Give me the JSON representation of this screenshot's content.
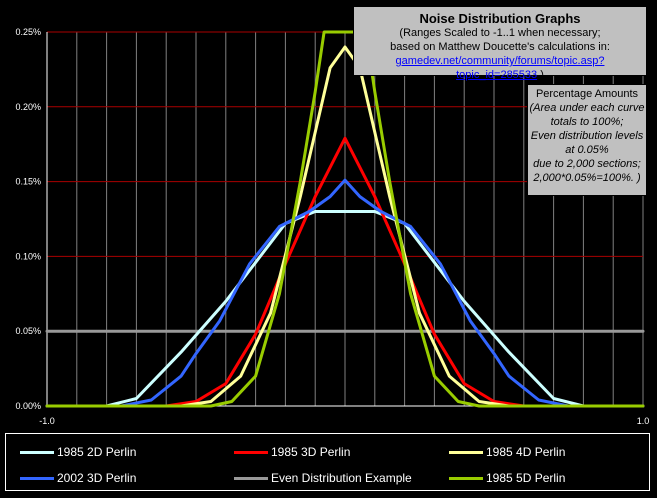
{
  "title_box": {
    "title": "Noise Distribution Graphs",
    "line1": "(Ranges Scaled to -1..1 when necessary;",
    "line2": "based on Matthew Doucette's calculations in:",
    "link": "gamedev.net/community/forums/topic.asp?topic_id=285533",
    "link_suffix": ".)"
  },
  "pct_box": {
    "title": "Percentage Amounts",
    "lines": [
      "(Area under each curve",
      "totals to 100%;",
      "Even distribution levels",
      "at 0.05%",
      "due to 2,000 sections;",
      "2,000*0.05%=100%. )"
    ]
  },
  "colors": {
    "background": "#000000",
    "gridline": "#aa0000",
    "vgrid": "#808080",
    "p2d_1985": "#ccffff",
    "p3d_1985": "#ff0000",
    "p4d_1985": "#ffff99",
    "p3d_2002": "#3366ff",
    "even": "#999999",
    "p5d_1985": "#99cc00"
  },
  "chart_data": {
    "type": "line",
    "title": "Noise Distribution Graphs",
    "xlim": [
      -1.0,
      1.0
    ],
    "ylim": [
      0.0,
      0.25
    ],
    "x_tick_labels": [
      "-1.0",
      "1.0"
    ],
    "y_ticks": [
      0.0,
      0.05,
      0.1,
      0.15,
      0.2,
      0.25
    ],
    "y_tick_labels": [
      "0.00%",
      "0.05%",
      "0.10%",
      "0.15%",
      "0.20%",
      "0.25%"
    ],
    "legend": "bottom",
    "grid": true,
    "series": [
      {
        "name": "1985 2D Perlin",
        "color": "#ccffff",
        "x": [
          -1.0,
          -0.8,
          -0.7,
          -0.55,
          -0.4,
          -0.2,
          -0.1,
          0.1,
          0.2,
          0.4,
          0.55,
          0.7,
          0.8,
          1.0
        ],
        "y": [
          0.0,
          0.0,
          0.005,
          0.036,
          0.07,
          0.122,
          0.13,
          0.13,
          0.122,
          0.07,
          0.036,
          0.005,
          0.0,
          0.0
        ]
      },
      {
        "name": "1985 3D Perlin",
        "color": "#ff0000",
        "x": [
          -1.0,
          -0.6,
          -0.5,
          -0.4,
          -0.3,
          -0.2,
          -0.1,
          0.0,
          0.1,
          0.2,
          0.3,
          0.4,
          0.5,
          0.6,
          1.0
        ],
        "y": [
          0.0,
          0.0,
          0.003,
          0.015,
          0.048,
          0.095,
          0.14,
          0.179,
          0.14,
          0.095,
          0.048,
          0.015,
          0.003,
          0.0,
          0.0
        ]
      },
      {
        "name": "1985 4D Perlin",
        "color": "#ffff99",
        "x": [
          -1.0,
          -0.55,
          -0.45,
          -0.35,
          -0.25,
          -0.15,
          -0.05,
          0.0,
          0.05,
          0.15,
          0.25,
          0.35,
          0.45,
          0.55,
          1.0
        ],
        "y": [
          0.0,
          0.0,
          0.003,
          0.02,
          0.062,
          0.14,
          0.226,
          0.24,
          0.226,
          0.14,
          0.062,
          0.02,
          0.003,
          0.0,
          0.0
        ]
      },
      {
        "name": "2002 3D Perlin",
        "color": "#3366ff",
        "x": [
          -1.0,
          -0.75,
          -0.65,
          -0.55,
          -0.5,
          -0.42,
          -0.32,
          -0.22,
          -0.12,
          -0.05,
          0.0,
          0.05,
          0.12,
          0.22,
          0.32,
          0.42,
          0.5,
          0.55,
          0.65,
          0.75,
          1.0
        ],
        "y": [
          0.0,
          0.0,
          0.004,
          0.02,
          0.035,
          0.057,
          0.095,
          0.12,
          0.13,
          0.14,
          0.151,
          0.14,
          0.13,
          0.12,
          0.095,
          0.057,
          0.035,
          0.02,
          0.004,
          0.0,
          0.0
        ]
      },
      {
        "name": "Even Distribution Example",
        "color": "#999999",
        "x": [
          -1.0,
          1.0
        ],
        "y": [
          0.05,
          0.05
        ]
      },
      {
        "name": "1985 5D Perlin",
        "color": "#99cc00",
        "x": [
          -1.0,
          -0.45,
          -0.38,
          -0.3,
          -0.22,
          -0.15,
          -0.1,
          -0.07,
          0.07,
          0.1,
          0.15,
          0.22,
          0.3,
          0.38,
          0.45,
          1.0
        ],
        "y": [
          0.0,
          0.0,
          0.003,
          0.02,
          0.075,
          0.15,
          0.21,
          0.25,
          0.25,
          0.21,
          0.15,
          0.075,
          0.02,
          0.003,
          0.0,
          0.0
        ]
      }
    ]
  }
}
